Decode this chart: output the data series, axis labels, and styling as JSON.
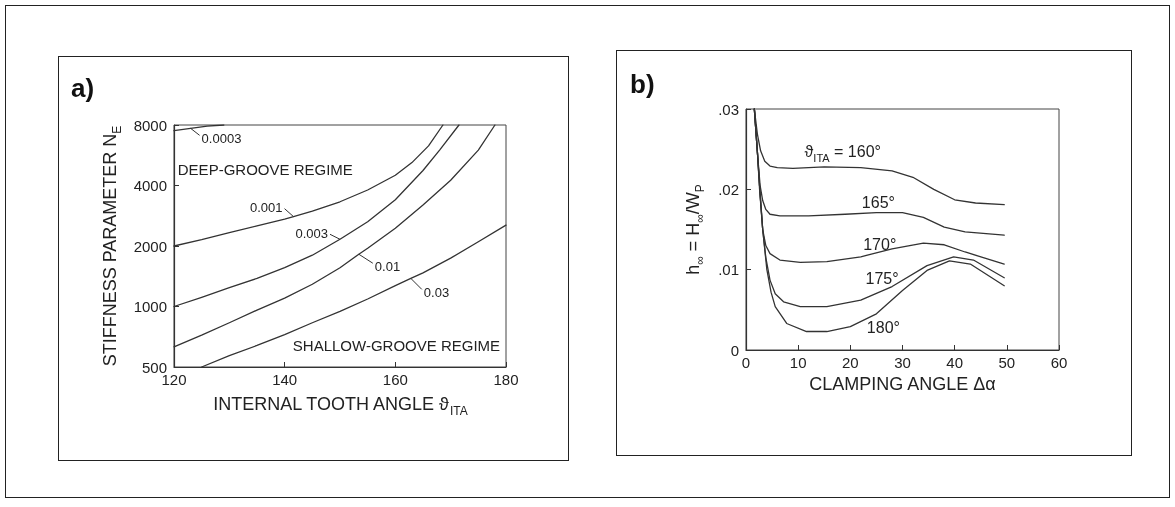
{
  "chart_data": [
    {
      "type": "line",
      "title": "a)",
      "xlabel": "INTERNAL TOOTH ANGLE ϑ$_{ITA}$",
      "ylabel": "STIFFNESS PARAMETER N$_{E}$",
      "log": "y",
      "xlim": [
        120,
        180
      ],
      "xticks": [
        120,
        140,
        160,
        180
      ],
      "ylim": [
        500,
        8000
      ],
      "yticks": [
        500,
        1000,
        2000,
        4000,
        8000
      ],
      "marker": "none",
      "line_style": "solid",
      "series": [
        {
          "color": "#333333",
          "x": [
            120,
            123,
            126,
            129
          ],
          "values": [
            7500,
            7700,
            7900,
            8000
          ]
        },
        {
          "color": "#333333",
          "x": [
            120,
            125,
            130,
            135,
            140,
            141.6,
            145,
            150,
            155,
            160,
            163,
            166,
            168.6
          ],
          "values": [
            2000,
            2150,
            2330,
            2520,
            2720,
            2800,
            2980,
            3320,
            3800,
            4500,
            5200,
            6300,
            8000
          ]
        },
        {
          "color": "#333333",
          "x": [
            120,
            125,
            130,
            135,
            140,
            145,
            150,
            155,
            160,
            165,
            168,
            171.5
          ],
          "values": [
            1000,
            1110,
            1240,
            1380,
            1560,
            1800,
            2160,
            2640,
            3400,
            4750,
            6000,
            8000
          ]
        },
        {
          "color": "#333333",
          "x": [
            120,
            125,
            130,
            135,
            140,
            145,
            150,
            153.4,
            155,
            160,
            165,
            170,
            175,
            178
          ],
          "values": [
            630,
            720,
            830,
            960,
            1100,
            1290,
            1560,
            1820,
            1950,
            2450,
            3200,
            4250,
            6000,
            8000
          ]
        },
        {
          "color": "#333333",
          "x": [
            125,
            130,
            135,
            140,
            145,
            150,
            155,
            160,
            162.8,
            165,
            170,
            175,
            180
          ],
          "values": [
            500,
            570,
            640,
            725,
            830,
            945,
            1090,
            1270,
            1380,
            1470,
            1740,
            2100,
            2540
          ]
        }
      ],
      "annotations": [
        {
          "text": "0.0003",
          "x": 123,
          "y": 7700
        },
        {
          "text": "0.001",
          "x": 141.6,
          "y": 2800
        },
        {
          "text": "0.003",
          "x": 150,
          "y": 2160
        },
        {
          "text": "0.01",
          "x": 153.4,
          "y": 1820
        },
        {
          "text": "0.03",
          "x": 162.8,
          "y": 1380
        },
        "DEEP-GROOVE REGIME",
        "SHALLOW-GROOVE REGIME"
      ]
    },
    {
      "type": "line",
      "title": "b)",
      "xlabel": "CLAMPING ANGLE Δα",
      "ylabel": "h$_{∞}$ = H$_{∞}$/W$_{P}$",
      "xlim": [
        0,
        60
      ],
      "xticks": [
        0,
        10,
        20,
        30,
        40,
        50,
        60
      ],
      "ylim": [
        0,
        0.03
      ],
      "yticks": [
        0,
        {
          "value": 0.01,
          "label": ".01"
        },
        {
          "value": 0.02,
          "label": ".02"
        },
        {
          "value": 0.03,
          "label": ".03"
        }
      ],
      "marker": "none",
      "line_style": "solid",
      "series": [
        {
          "color": "#333333",
          "x": [
            1.6,
            2.2,
            2.8,
            3.6,
            4.6,
            6,
            9,
            15,
            22,
            28,
            32,
            36,
            40,
            44,
            49.5
          ],
          "values": [
            0.03,
            0.0268,
            0.0248,
            0.0235,
            0.0229,
            0.0227,
            0.0226,
            0.0228,
            0.0227,
            0.0223,
            0.0215,
            0.02,
            0.0187,
            0.0183,
            0.0181
          ]
        },
        {
          "color": "#333333",
          "x": [
            1.6,
            2.2,
            2.7,
            3.2,
            3.8,
            4.6,
            6.5,
            12,
            19,
            25,
            30,
            34,
            38,
            42,
            49.5
          ],
          "values": [
            0.03,
            0.0245,
            0.0205,
            0.0186,
            0.0175,
            0.0169,
            0.0167,
            0.0167,
            0.0169,
            0.0171,
            0.0171,
            0.0165,
            0.0153,
            0.0147,
            0.0143
          ]
        },
        {
          "color": "#333333",
          "x": [
            1.6,
            2.2,
            2.6,
            3.2,
            3.8,
            4.6,
            6.5,
            10.4,
            15.5,
            22,
            28,
            34,
            38,
            42,
            49.5
          ],
          "values": [
            0.03,
            0.0245,
            0.02,
            0.015,
            0.013,
            0.012,
            0.0112,
            0.0109,
            0.011,
            0.0116,
            0.0126,
            0.0133,
            0.0131,
            0.0122,
            0.0107
          ]
        },
        {
          "color": "#333333",
          "x": [
            1.6,
            2.2,
            2.7,
            3.2,
            3.8,
            4.6,
            5.6,
            7.2,
            10.4,
            15.5,
            22,
            28,
            34.7,
            39.8,
            43.6,
            49.5
          ],
          "values": [
            0.03,
            0.0245,
            0.0195,
            0.015,
            0.0115,
            0.0087,
            0.007,
            0.006,
            0.0054,
            0.0054,
            0.0062,
            0.0079,
            0.0105,
            0.0116,
            0.0112,
            0.009
          ]
        },
        {
          "color": "#333333",
          "x": [
            1.6,
            2.2,
            2.7,
            3.2,
            4,
            4.8,
            5.6,
            7.8,
            11.6,
            15.5,
            20,
            25,
            30,
            34.7,
            39,
            43,
            49.5
          ],
          "values": [
            0.03,
            0.0245,
            0.0195,
            0.015,
            0.01,
            0.0072,
            0.0054,
            0.0033,
            0.0023,
            0.0023,
            0.0029,
            0.0045,
            0.0074,
            0.0099,
            0.0111,
            0.0107,
            0.008
          ]
        }
      ],
      "annotations": [
        {
          "text": "ϑ$_{ITA}$ = 160°",
          "x": 22,
          "y": 0.0227
        },
        {
          "text": "165°",
          "x": 25,
          "y": 0.0171
        },
        {
          "text": "170°",
          "x": 22,
          "y": 0.0116
        },
        {
          "text": "175°",
          "x": 28,
          "y": 0.0079
        },
        {
          "text": "180°",
          "x": 25,
          "y": 0.0045
        }
      ]
    }
  ]
}
